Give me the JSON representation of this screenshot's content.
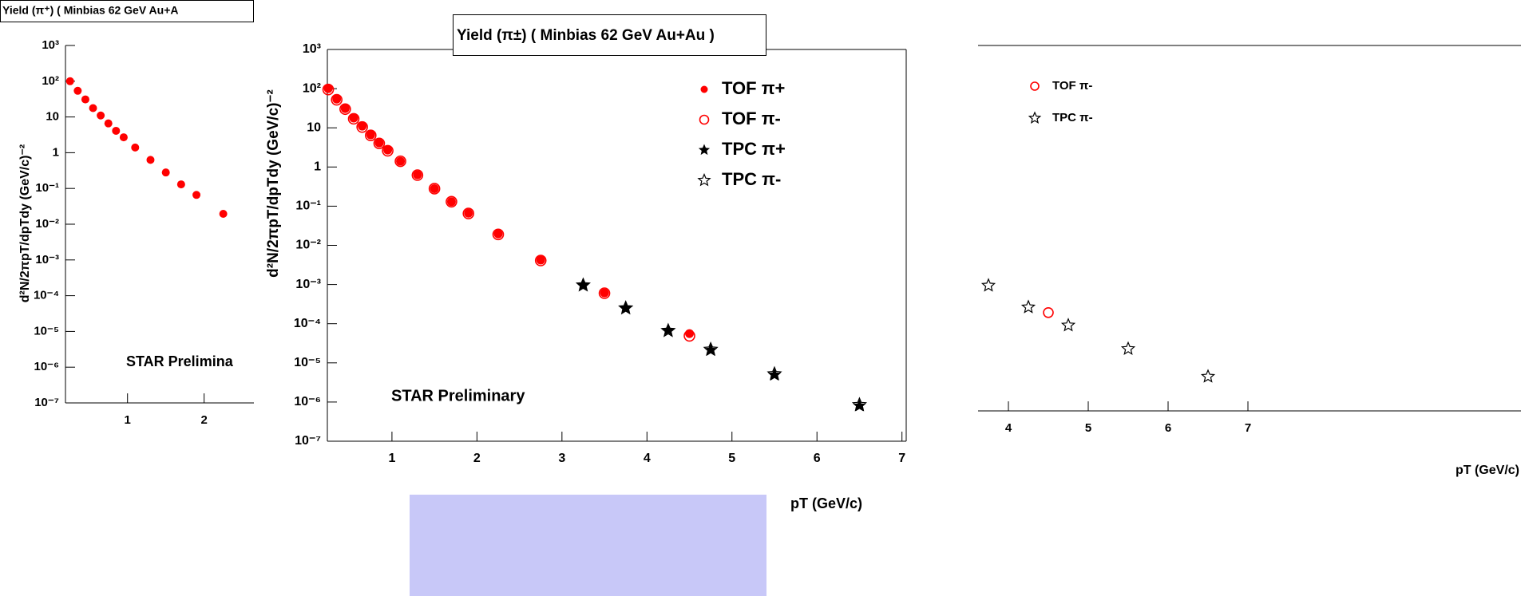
{
  "chart_data": [
    {
      "type": "scatter",
      "title": "Yield (π⁺) ( Minbias 62 GeV Au+A",
      "y_label": "d²N/2πpT/dpTdy (GeV/c)⁻²",
      "annotation": "STAR Prelimina",
      "log_y": true,
      "ylim": [
        1e-07,
        1000
      ],
      "xlim": [
        0.19,
        2.65
      ],
      "yticks": [
        {
          "value": 1000,
          "label": "10³"
        },
        {
          "value": 100,
          "label": "10²"
        },
        10,
        1,
        {
          "value": 0.1,
          "label": "10⁻¹"
        },
        {
          "value": 0.01,
          "label": "10⁻²"
        },
        {
          "value": 0.001,
          "label": "10⁻³"
        },
        {
          "value": 0.0001,
          "label": "10⁻⁴"
        },
        {
          "value": 1e-05,
          "label": "10⁻⁵"
        },
        {
          "value": 1e-06,
          "label": "10⁻⁶"
        },
        {
          "value": 1e-07,
          "label": "10⁻⁷"
        }
      ],
      "xticks": [
        1,
        2
      ],
      "series": [
        {
          "color": "#ff0000",
          "marker": "filled-circle",
          "x": [
            0.25,
            0.35,
            0.45,
            0.55,
            0.65,
            0.75,
            0.85,
            0.95,
            1.1,
            1.3,
            1.5,
            1.7,
            1.9,
            2.25
          ],
          "values": [
            100,
            54,
            31,
            17.7,
            11,
            6.6,
            4.1,
            2.7,
            1.4,
            0.63,
            0.28,
            0.13,
            0.066,
            0.0195
          ]
        }
      ]
    },
    {
      "type": "scatter",
      "title": "Yield (π±) ( Minbias 62 GeV Au+Au )",
      "y_label": "d²N/2πpT/dpTdy (GeV/c)⁻²",
      "x_label": "pT (GeV/c)",
      "annotation": "STAR Preliminary",
      "log_y": true,
      "ylim": [
        1e-07,
        1000
      ],
      "xlim": [
        0.24,
        7.05
      ],
      "yticks": [
        {
          "value": 1000,
          "label": "10³"
        },
        {
          "value": 100,
          "label": "10²"
        },
        10,
        1,
        {
          "value": 0.1,
          "label": "10⁻¹"
        },
        {
          "value": 0.01,
          "label": "10⁻²"
        },
        {
          "value": 0.001,
          "label": "10⁻³"
        },
        {
          "value": 0.0001,
          "label": "10⁻⁴"
        },
        {
          "value": 1e-05,
          "label": "10⁻⁵"
        },
        {
          "value": 1e-06,
          "label": "10⁻⁶"
        },
        {
          "value": 1e-07,
          "label": "10⁻⁷"
        }
      ],
      "xticks": [
        1,
        2,
        3,
        4,
        5,
        6,
        7
      ],
      "series": [
        {
          "name": "TOF π+",
          "color": "#ff0000",
          "marker": "filled-circle",
          "x": [
            0.25,
            0.35,
            0.45,
            0.55,
            0.65,
            0.75,
            0.85,
            0.95,
            1.1,
            1.3,
            1.5,
            1.7,
            1.9,
            2.25,
            2.75,
            3.5,
            4.5
          ],
          "values": [
            100,
            54,
            31,
            17.7,
            11,
            6.6,
            4.1,
            2.7,
            1.4,
            0.63,
            0.28,
            0.13,
            0.066,
            0.0195,
            0.0042,
            0.00061,
            5.6e-05
          ]
        },
        {
          "name": "TOF π-",
          "color": "#ff0000",
          "marker": "open-circle",
          "x": [
            0.25,
            0.35,
            0.45,
            0.55,
            0.65,
            0.75,
            0.85,
            0.95,
            1.1,
            1.3,
            1.5,
            1.7,
            1.9,
            2.25,
            2.75,
            3.5,
            4.5
          ],
          "values": [
            95,
            52,
            30,
            17,
            10.5,
            6.4,
            4,
            2.6,
            1.4,
            0.62,
            0.28,
            0.13,
            0.065,
            0.019,
            0.0041,
            0.0006,
            4.9e-05
          ]
        },
        {
          "name": "TPC π+",
          "color": "#000000",
          "marker": "filled-star",
          "x": [
            3.25,
            3.75,
            4.25,
            4.75,
            5.5,
            6.5
          ],
          "values": [
            0.00098,
            0.00025,
            6.8e-05,
            2.1e-05,
            4.9e-06,
            8e-07
          ]
        },
        {
          "name": "TPC π-",
          "color": "#000000",
          "marker": "open-star",
          "x": [
            3.25,
            3.75,
            4.25,
            4.75,
            5.5,
            6.5
          ],
          "values": [
            0.00096,
            0.00025,
            6.6e-05,
            2.2e-05,
            5.2e-06,
            8.5e-07
          ]
        }
      ]
    },
    {
      "type": "scatter",
      "x_label": "pT (GeV/c)",
      "log_y": true,
      "ylim": [
        1e-07,
        1000
      ],
      "xlim": [
        3.62,
        10.42
      ],
      "xticks": [
        4,
        5,
        6,
        7
      ],
      "series": [
        {
          "name": "TOF π-",
          "color": "#ff0000",
          "marker": "open-circle",
          "x": [
            4.5
          ],
          "values": [
            4.9e-05
          ]
        },
        {
          "name": "TPC π-",
          "color": "#000000",
          "marker": "open-star",
          "x": [
            3.75,
            4.25,
            4.75,
            5.5,
            6.5
          ],
          "values": [
            0.00027,
            6.9e-05,
            2.2e-05,
            5e-06,
            8.7e-07
          ]
        }
      ]
    }
  ]
}
